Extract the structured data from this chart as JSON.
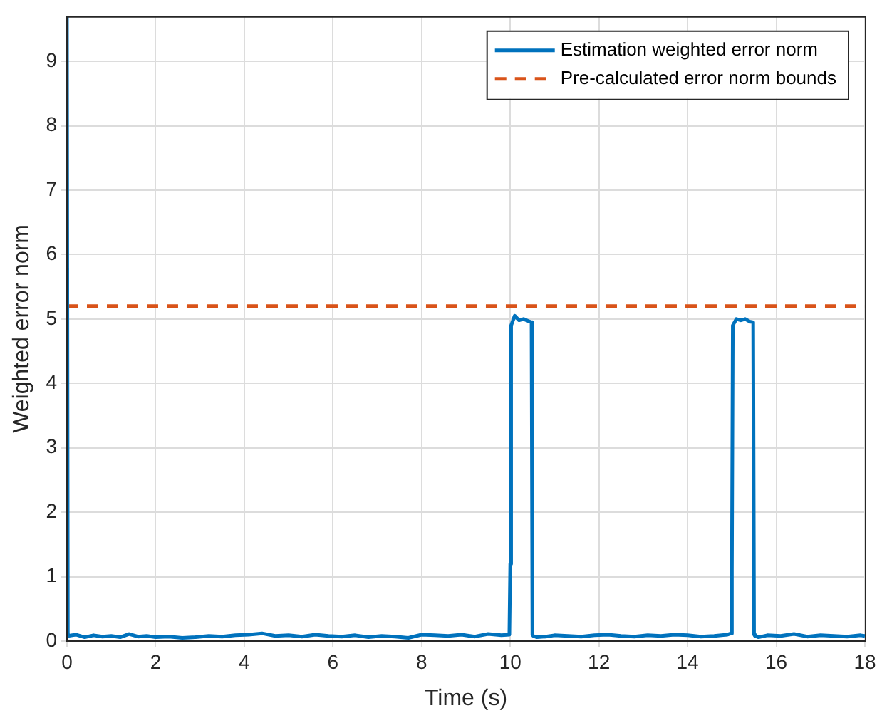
{
  "chart_data": {
    "type": "line",
    "xlabel": "Time (s)",
    "ylabel": "Weighted error norm",
    "xlim": [
      0,
      18
    ],
    "xticks": [
      0,
      2,
      4,
      6,
      8,
      10,
      12,
      14,
      16,
      18
    ],
    "ylim": [
      0,
      9.7
    ],
    "yticks": [
      0,
      1,
      2,
      3,
      4,
      5,
      6,
      7,
      8,
      9
    ],
    "grid": true,
    "legend": "top right",
    "marker": "none",
    "series": [
      {
        "name": "Estimation weighted error norm",
        "color": "#0072bd",
        "line_style": "solid",
        "x": [
          0,
          0.02,
          0.2,
          0.4,
          0.6,
          0.8,
          1.0,
          1.2,
          1.4,
          1.6,
          1.8,
          2.0,
          2.3,
          2.6,
          2.9,
          3.2,
          3.5,
          3.8,
          4.1,
          4.4,
          4.7,
          5.0,
          5.3,
          5.6,
          5.9,
          6.2,
          6.5,
          6.8,
          7.1,
          7.4,
          7.7,
          8.0,
          8.3,
          8.6,
          8.9,
          9.2,
          9.5,
          9.8,
          9.98,
          10.0,
          10.02,
          10.1,
          10.2,
          10.3,
          10.4,
          10.48,
          10.5,
          10.52,
          10.6,
          10.8,
          11.0,
          11.3,
          11.6,
          11.9,
          12.2,
          12.5,
          12.8,
          13.1,
          13.4,
          13.7,
          14.0,
          14.3,
          14.6,
          14.9,
          14.98,
          15.0,
          15.02,
          15.1,
          15.2,
          15.3,
          15.4,
          15.48,
          15.5,
          15.52,
          15.6,
          15.8,
          16.1,
          16.4,
          16.7,
          17.0,
          17.3,
          17.6,
          17.9,
          18.0
        ],
        "values": [
          9.7,
          0.08,
          0.1,
          0.06,
          0.09,
          0.07,
          0.08,
          0.06,
          0.11,
          0.07,
          0.08,
          0.06,
          0.07,
          0.05,
          0.06,
          0.08,
          0.07,
          0.09,
          0.1,
          0.12,
          0.08,
          0.09,
          0.07,
          0.1,
          0.08,
          0.07,
          0.09,
          0.06,
          0.08,
          0.07,
          0.05,
          0.1,
          0.09,
          0.08,
          0.1,
          0.07,
          0.11,
          0.09,
          0.1,
          1.2,
          4.9,
          5.05,
          4.98,
          5.0,
          4.97,
          4.95,
          0.1,
          0.08,
          0.06,
          0.07,
          0.09,
          0.08,
          0.07,
          0.09,
          0.1,
          0.08,
          0.07,
          0.09,
          0.08,
          0.1,
          0.09,
          0.07,
          0.08,
          0.1,
          0.12,
          1.1,
          4.9,
          5.0,
          4.98,
          5.0,
          4.96,
          4.95,
          0.1,
          0.08,
          0.06,
          0.09,
          0.08,
          0.11,
          0.07,
          0.09,
          0.08,
          0.07,
          0.09,
          0.08
        ]
      },
      {
        "name": "Pre-calculated error norm bounds",
        "color": "#d95319",
        "line_style": "dashed",
        "x": [
          0,
          18
        ],
        "values": [
          5.2,
          5.2
        ]
      }
    ]
  }
}
